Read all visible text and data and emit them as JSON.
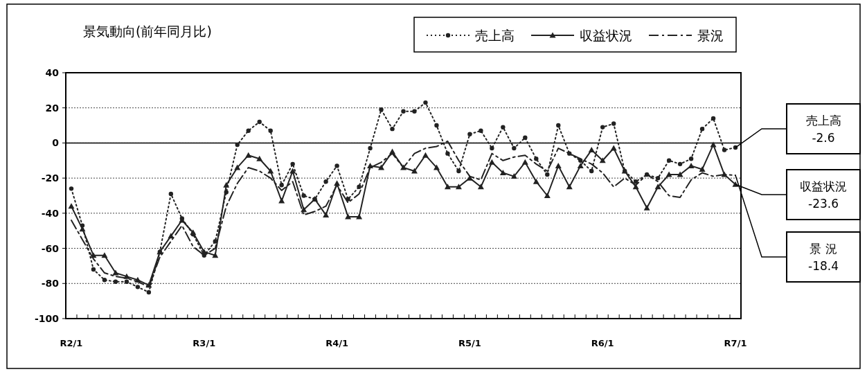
{
  "chart_data": {
    "type": "line",
    "title": "景気動向(前年同月比)",
    "categories": [
      "R2/1",
      null,
      null,
      null,
      null,
      null,
      null,
      null,
      null,
      null,
      null,
      null,
      "R3/1",
      null,
      null,
      null,
      null,
      null,
      null,
      null,
      null,
      null,
      null,
      null,
      "R4/1",
      null,
      null,
      null,
      null,
      null,
      null,
      null,
      null,
      null,
      null,
      null,
      "R5/1",
      null,
      null,
      null,
      null,
      null,
      null,
      null,
      null,
      null,
      null,
      null,
      "R6/1",
      null,
      null,
      null,
      null,
      null,
      null,
      null,
      null,
      null,
      null,
      null,
      "R7/1"
    ],
    "series": [
      {
        "name": "売上高",
        "color": "#222222",
        "marker": "circle",
        "line_style": "dotted",
        "values": [
          -26,
          -47,
          -72,
          -78,
          -79,
          -79,
          -82,
          -85,
          -62,
          -29,
          -43,
          -52,
          -64,
          -56,
          -28,
          -1,
          7,
          12,
          7,
          -24,
          -12,
          -30,
          -32,
          -22,
          -13,
          -32,
          -25,
          -3,
          19,
          8,
          18,
          18,
          23,
          10,
          -6,
          -16,
          5,
          7,
          -3,
          9,
          -3,
          3,
          -9,
          -18,
          10,
          -6,
          -10,
          -16,
          9,
          11,
          -16,
          -22,
          -18,
          -20,
          -10,
          -12,
          -9,
          8,
          14,
          -4,
          -2.6
        ]
      },
      {
        "name": "収益状況",
        "color": "#222222",
        "marker": "triangle",
        "line_style": "solid",
        "values": [
          -36,
          -49,
          -64,
          -64,
          -74,
          -76,
          -78,
          -81,
          -62,
          -53,
          -44,
          -51,
          -62,
          -64,
          -24,
          -14,
          -7,
          -9,
          -16,
          -33,
          -16,
          -38,
          -32,
          -41,
          -23,
          -42,
          -42,
          -13,
          -14,
          -5,
          -14,
          -16,
          -7,
          -14,
          -25,
          -25,
          -20,
          -25,
          -11,
          -17,
          -19,
          -11,
          -22,
          -30,
          -13,
          -25,
          -13,
          -4,
          -10,
          -3,
          -16,
          -25,
          -37,
          -25,
          -18,
          -18,
          -13,
          -15,
          -1,
          -18,
          -23.6
        ]
      },
      {
        "name": "景況",
        "color": "#222222",
        "marker": "none",
        "line_style": "dashed",
        "values": [
          -44,
          -55,
          -66,
          -74,
          -76,
          -77,
          -79,
          -82,
          -65,
          -56,
          -47,
          -59,
          -64,
          -60,
          -36,
          -23,
          -14,
          -16,
          -20,
          -27,
          -22,
          -41,
          -39,
          -36,
          -24,
          -34,
          -29,
          -14,
          -11,
          -6,
          -14,
          -6,
          -3,
          -2,
          1,
          -10,
          -19,
          -21,
          -6,
          -10,
          -8,
          -7,
          -12,
          -16,
          -3,
          -6,
          -9,
          -12,
          -17,
          -25,
          -20,
          -24,
          -18,
          -22,
          -30,
          -31,
          -21,
          -17,
          -19,
          -18,
          -18.4
        ]
      }
    ],
    "ylim": [
      -100,
      40
    ],
    "yticks": [
      -100,
      -80,
      -60,
      -40,
      -20,
      0,
      20,
      40
    ],
    "grid": "y",
    "legend": "top right",
    "ref_lines": [
      {
        "axis": "y",
        "value": 0,
        "color": "#000000",
        "line_style": "solid"
      }
    ],
    "annotations": [
      "売上高\n-2.6",
      {
        "text": "収益状況\n-23.6",
        "x": "R7/1",
        "y": -23.6
      },
      "景 況\n-18.4"
    ]
  }
}
